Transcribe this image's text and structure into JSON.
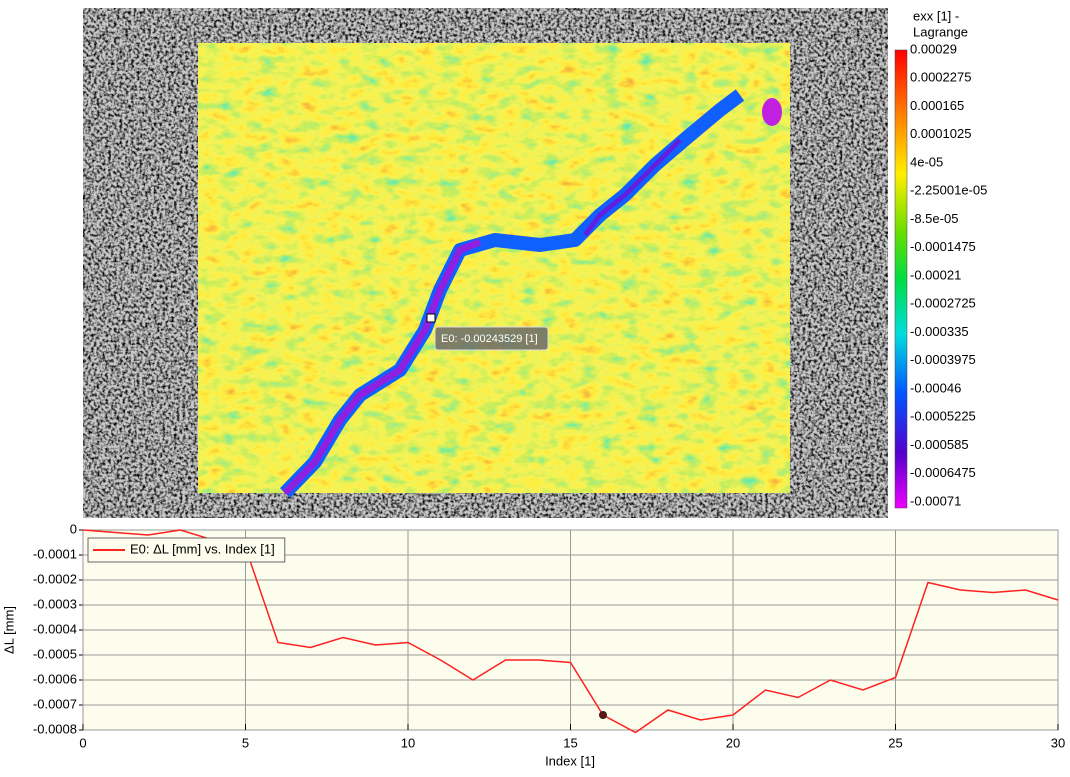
{
  "colorbar": {
    "title_lines": [
      "exx [1] -",
      "Lagrange"
    ],
    "labels": [
      "0.00029",
      "0.0002275",
      "0.000165",
      "0.0001025",
      "4e-05",
      "-2.25001e-05",
      "-8.5e-05",
      "-0.0001475",
      "-0.00021",
      "-0.0002725",
      "-0.000335",
      "-0.0003975",
      "-0.00046",
      "-0.0005225",
      "-0.000585",
      "-0.0006475",
      "-0.00071"
    ]
  },
  "tooltip": "E0: -0.00243529 [1]",
  "chart_data": {
    "type": "line",
    "x_label": "Index [1]",
    "y_label": "ΔL [mm]",
    "x": [
      0,
      1,
      2,
      3,
      4,
      5,
      6,
      7,
      8,
      9,
      10,
      11,
      12,
      13,
      14,
      15,
      16,
      17,
      18,
      19,
      20,
      21,
      22,
      23,
      24,
      25,
      26,
      27,
      28,
      29,
      30
    ],
    "series": [
      {
        "name": "E0: ΔL [mm] vs. Index [1]",
        "color": "#ff2020",
        "values": [
          0,
          -1e-05,
          -2e-05,
          0,
          -4e-05,
          -7e-05,
          -0.00045,
          -0.00047,
          -0.00043,
          -0.00046,
          -0.00045,
          -0.00052,
          -0.0006,
          -0.00052,
          -0.00052,
          -0.00053,
          -0.00074,
          -0.00081,
          -0.00072,
          -0.00076,
          -0.00074,
          -0.00064,
          -0.00067,
          -0.0006,
          -0.00064,
          -0.00059,
          -0.00021,
          -0.00024,
          -0.00025,
          -0.00024,
          -0.00028
        ]
      }
    ],
    "highlight_index": 16,
    "xlim": [
      0,
      30
    ],
    "xticks": [
      0,
      5,
      10,
      15,
      20,
      25,
      30
    ],
    "ylim": [
      -0.0008,
      0
    ],
    "yticks": [
      0,
      -0.0001,
      -0.0002,
      -0.0003,
      -0.0004,
      -0.0005,
      -0.0006,
      -0.0007,
      -0.0008
    ],
    "grid": true,
    "legend": "top-left"
  }
}
